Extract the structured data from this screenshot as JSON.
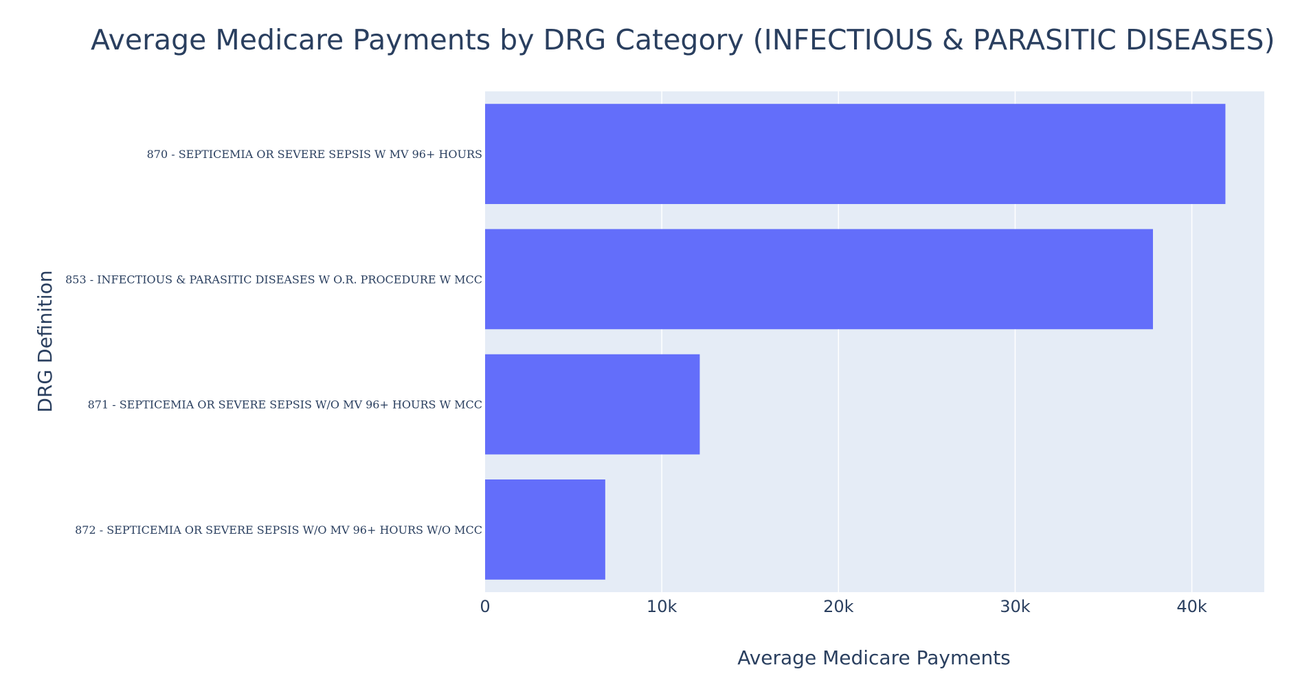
{
  "chart_data": {
    "type": "bar",
    "orientation": "horizontal",
    "title": "Average Medicare Payments by DRG Category (INFECTIOUS & PARASITIC DISEASES)",
    "xlabel": "Average Medicare Payments",
    "ylabel": "DRG Definition",
    "categories": [
      "870 - SEPTICEMIA OR SEVERE SEPSIS W MV 96+ HOURS",
      "853 - INFECTIOUS & PARASITIC DISEASES W O.R. PROCEDURE W MCC",
      "871 - SEPTICEMIA OR SEVERE SEPSIS W/O MV 96+ HOURS W MCC",
      "872 - SEPTICEMIA OR SEVERE SEPSIS W/O MV 96+ HOURS W/O MCC"
    ],
    "values": [
      41900,
      37800,
      12150,
      6800
    ],
    "xlim": [
      0,
      44100
    ],
    "x_ticks": [
      {
        "value": 0,
        "label": "0"
      },
      {
        "value": 10000,
        "label": "10k"
      },
      {
        "value": 20000,
        "label": "20k"
      },
      {
        "value": 30000,
        "label": "30k"
      },
      {
        "value": 40000,
        "label": "40k"
      }
    ],
    "grid": true,
    "legend": "none",
    "colors": {
      "bar": "#636efa",
      "plot_background": "#e5ecf6",
      "grid": "#ffffff",
      "text": "#2a3f5f"
    }
  }
}
